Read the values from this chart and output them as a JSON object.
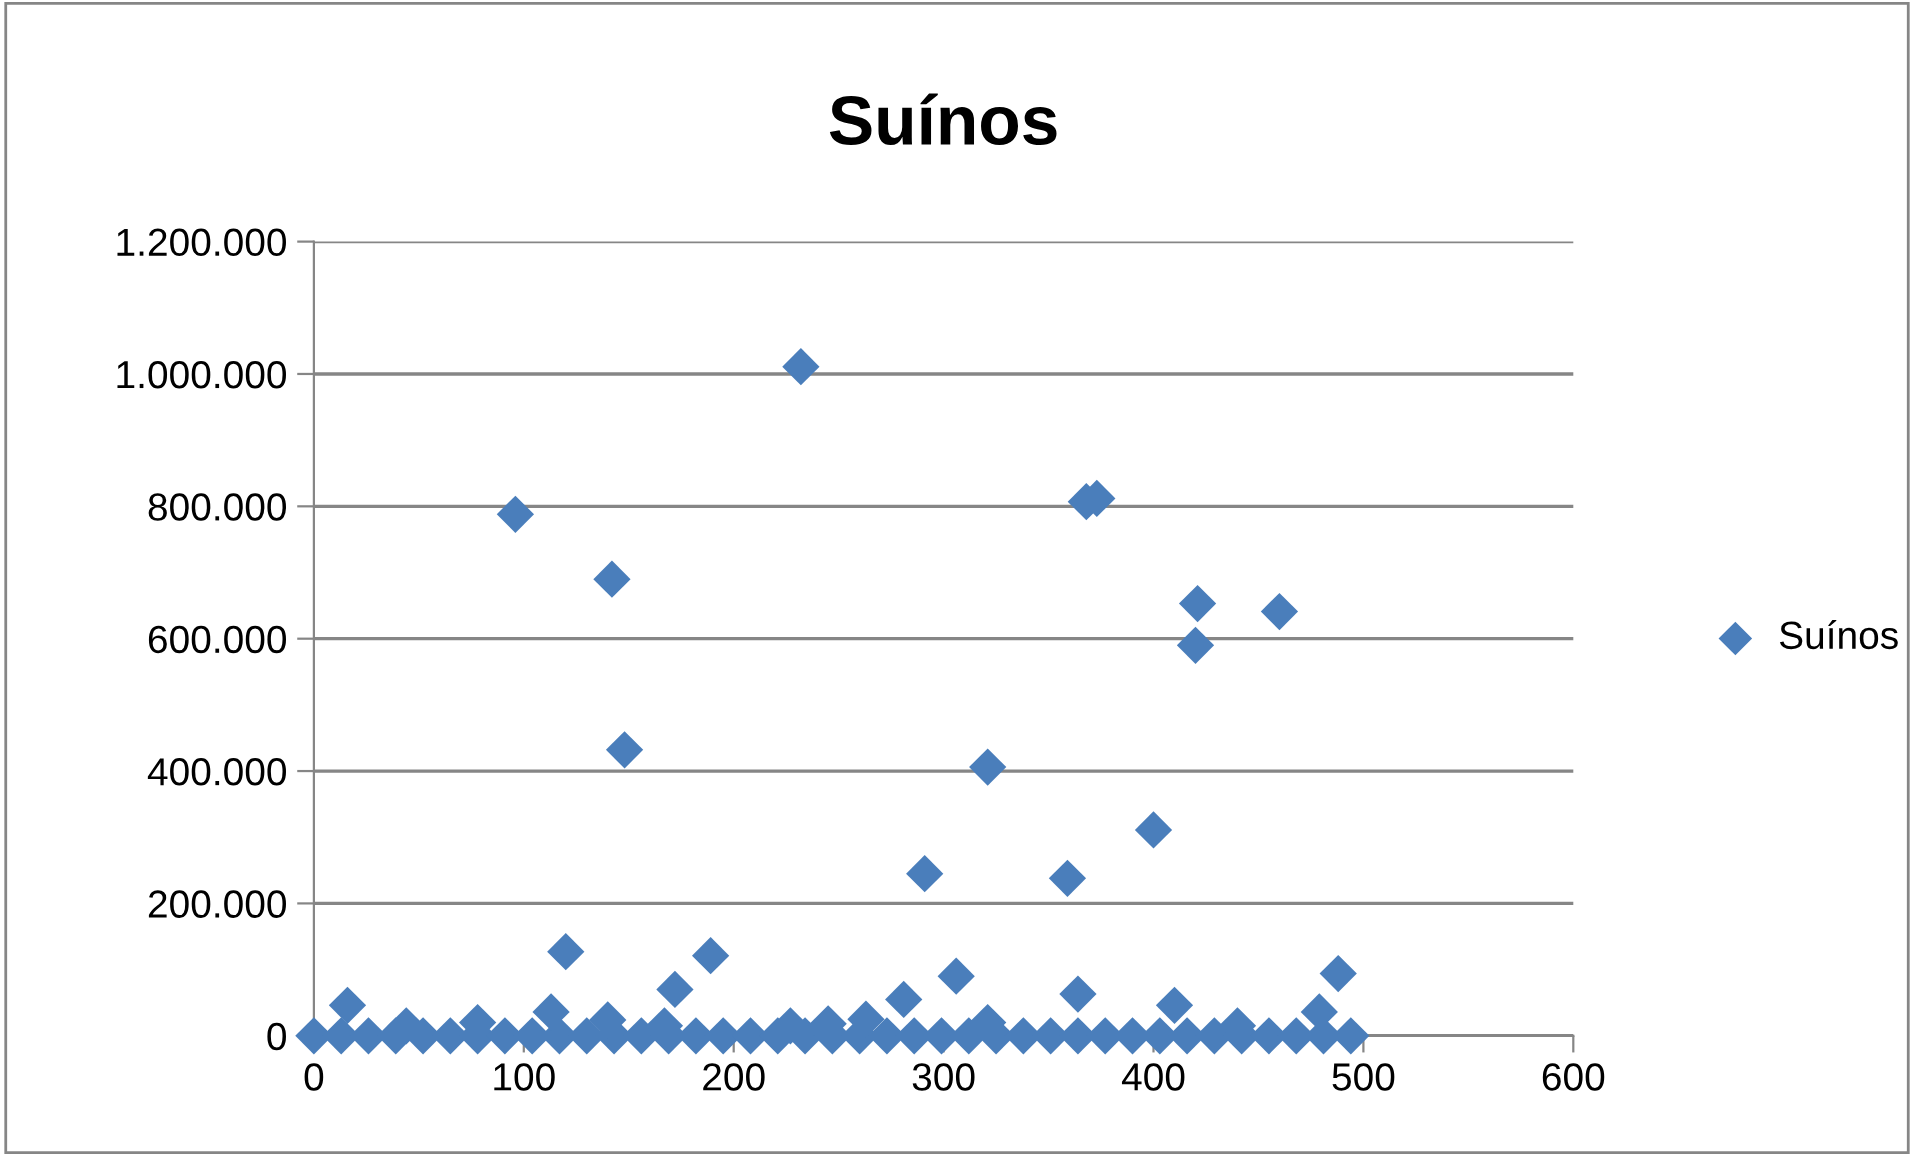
{
  "chart_data": {
    "type": "scatter",
    "title": "Suínos",
    "series": [
      {
        "name": "Suínos",
        "color": "#4a7ebb",
        "x": [
          0,
          13,
          26,
          39,
          52,
          65,
          78,
          91,
          104,
          117,
          130,
          143,
          156,
          169,
          182,
          195,
          208,
          221,
          234,
          247,
          260,
          273,
          286,
          299,
          312,
          325,
          338,
          351,
          364,
          377,
          390,
          403,
          416,
          429,
          442,
          455,
          468,
          481,
          494,
          16,
          44,
          78,
          113,
          140,
          167,
          227,
          245,
          263,
          281,
          306,
          321,
          364,
          410,
          440,
          479,
          488,
          96,
          142,
          148,
          120,
          189,
          172,
          232,
          291,
          321,
          359,
          368,
          373,
          400,
          420,
          421,
          460
        ],
        "values": [
          0,
          0,
          0,
          0,
          0,
          0,
          0,
          0,
          0,
          0,
          0,
          0,
          0,
          0,
          0,
          0,
          0,
          0,
          0,
          0,
          0,
          0,
          0,
          0,
          0,
          0,
          0,
          0,
          0,
          0,
          0,
          0,
          0,
          0,
          0,
          0,
          0,
          0,
          0,
          46000,
          15000,
          20000,
          36000,
          24000,
          15000,
          15000,
          18000,
          25000,
          55000,
          90000,
          20000,
          63000,
          46000,
          15000,
          36000,
          94000,
          788000,
          690000,
          432000,
          127000,
          121000,
          70000,
          1011000,
          245000,
          406000,
          238000,
          807000,
          812000,
          311000,
          590000,
          653000,
          641000
        ]
      }
    ],
    "xlim": [
      0,
      600
    ],
    "xticks": [
      0,
      100,
      200,
      300,
      400,
      500,
      600
    ],
    "ylim": [
      0,
      1200000
    ],
    "yticks": [
      0,
      {
        "value": 200000,
        "label": "200.000"
      },
      {
        "value": 400000,
        "label": "400.000"
      },
      {
        "value": 600000,
        "label": "600.000"
      },
      {
        "value": 800000,
        "label": "800.000"
      },
      {
        "value": 1000000,
        "label": "1.000.000"
      },
      {
        "value": 1200000,
        "label": "1.200.000"
      }
    ],
    "grid": "y",
    "legend": "right",
    "marker": "diamond"
  }
}
